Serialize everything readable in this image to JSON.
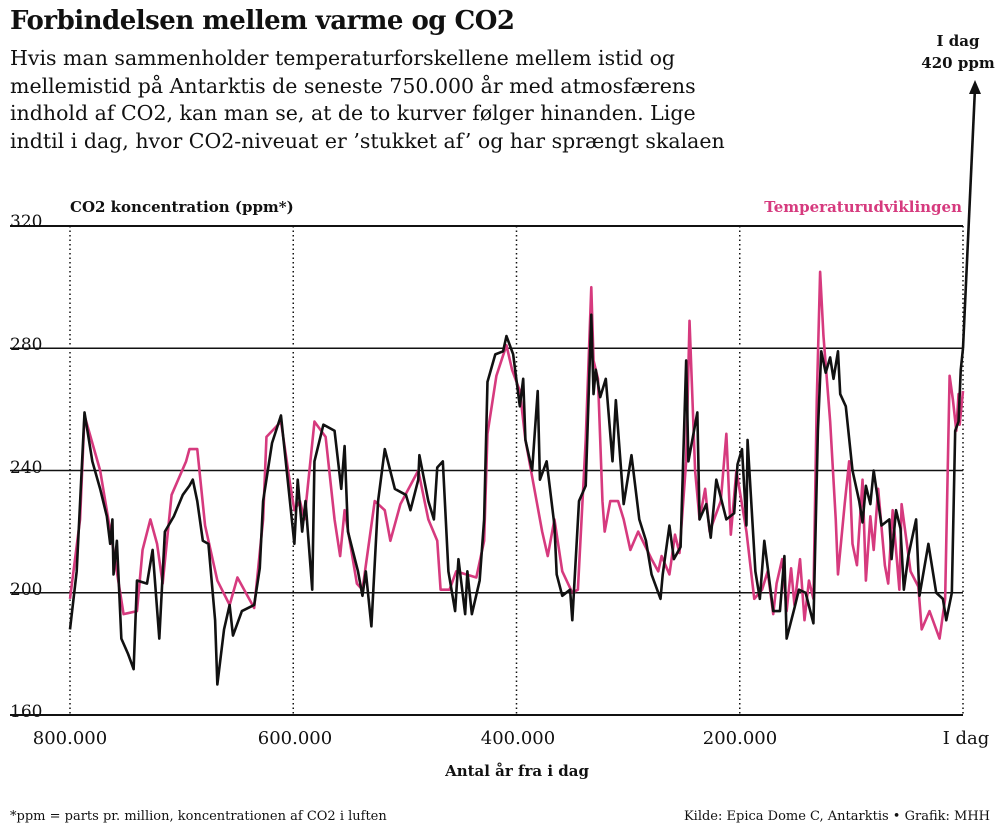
{
  "header": {
    "title": "Forbindelsen mellem varme og CO2",
    "subtitle_lines": [
      "Hvis man sammenholder temperaturforskellene mellem istid og",
      "mellemistid på Antarktis de seneste 750.000 år med atmosfærens",
      "indhold af CO2, kan man se, at de to kurver følger hinanden. Lige",
      "indtil i dag, hvor CO2-niveuat er ’stukket af’ og har sprængt skalaen"
    ]
  },
  "footer": {
    "note": "*ppm = parts pr. million, koncentrationen af CO2 i luften",
    "source": "Kilde: Epica Dome C, Antarktis  •  Grafik: MHH"
  },
  "chart_data": {
    "type": "line",
    "ylabel": "CO2 koncentration (ppm*)",
    "xlabel": "Antal år fra i dag",
    "xlim": [
      800000,
      0
    ],
    "ylim": [
      160,
      320
    ],
    "yticks": [
      "160",
      "200",
      "240",
      "280",
      "320"
    ],
    "xticks": [
      {
        "value": 800000,
        "label": "800.000"
      },
      {
        "value": 600000,
        "label": "600.000"
      },
      {
        "value": 400000,
        "label": "400.000"
      },
      {
        "value": 200000,
        "label": "200.000"
      },
      {
        "value": 0,
        "label": "I dag"
      }
    ],
    "grid": "horizontal solid, vertical dotted",
    "annotation": {
      "line1": "I dag",
      "line2": "420 ppm",
      "value": 420
    },
    "colors": {
      "co2": "#111111",
      "temperature": "#d63a7e"
    },
    "series": [
      {
        "key": "co2",
        "x_kyr_ago": [
          800,
          794,
          787,
          780,
          773,
          767,
          764,
          762,
          761,
          758,
          754,
          748,
          743,
          740,
          731,
          726,
          720,
          715,
          707,
          699,
          693,
          690,
          686,
          681,
          676,
          670,
          668,
          662,
          657,
          654,
          646,
          635,
          630,
          627,
          619,
          611,
          605,
          599,
          596,
          592,
          589,
          583,
          581,
          573,
          563,
          557,
          554,
          551,
          542,
          538,
          535,
          530,
          524,
          518,
          509,
          499,
          495,
          488,
          487,
          479,
          474,
          471,
          466,
          461,
          455,
          452,
          446,
          444,
          440,
          433,
          429,
          426,
          419,
          412,
          409,
          403,
          397,
          394,
          392,
          386,
          381,
          379,
          373,
          366,
          364,
          359,
          352,
          350,
          344,
          338,
          333,
          331,
          329,
          325,
          320,
          314,
          311,
          304,
          297,
          290,
          284,
          279,
          274,
          271,
          269,
          263,
          259,
          253,
          248,
          246,
          238,
          236,
          230,
          226,
          221,
          212,
          205,
          202,
          198,
          194,
          193,
          186,
          182,
          178,
          170,
          164,
          160,
          158,
          151,
          147,
          141,
          134,
          130,
          127,
          123,
          119,
          116,
          112,
          110,
          105,
          99,
          93,
          90,
          87,
          83,
          80,
          73,
          66,
          64,
          60,
          56,
          53,
          49,
          42,
          39,
          31,
          24,
          18,
          15,
          10,
          7,
          4,
          2,
          0
        ],
        "ppm": [
          188,
          207,
          259,
          243,
          234,
          225,
          216,
          224,
          206,
          217,
          185,
          180,
          175,
          204,
          203,
          214,
          185,
          220,
          225,
          232,
          235,
          237,
          230,
          217,
          216,
          191,
          170,
          188,
          196,
          186,
          194,
          196,
          208,
          230,
          249,
          258,
          237,
          216,
          237,
          220,
          230,
          201,
          243,
          255,
          253,
          234,
          248,
          220,
          207,
          199,
          207,
          189,
          230,
          247,
          234,
          232,
          227,
          237,
          245,
          230,
          224,
          241,
          243,
          207,
          194,
          211,
          193,
          207,
          193,
          204,
          224,
          269,
          278,
          279,
          284,
          278,
          261,
          270,
          250,
          240,
          266,
          237,
          243,
          222,
          206,
          199,
          201,
          191,
          230,
          235,
          291,
          265,
          273,
          264,
          270,
          243,
          263,
          229,
          245,
          224,
          217,
          206,
          201,
          198,
          206,
          222,
          211,
          215,
          276,
          243,
          259,
          224,
          229,
          218,
          237,
          224,
          226,
          242,
          247,
          222,
          250,
          207,
          198,
          217,
          194,
          194,
          212,
          185,
          195,
          201,
          200,
          190,
          253,
          279,
          272,
          277,
          270,
          279,
          265,
          261,
          240,
          230,
          223,
          235,
          229,
          240,
          222,
          224,
          211,
          227,
          221,
          201,
          212,
          224,
          199,
          216,
          200,
          198,
          191,
          200,
          253,
          256,
          273,
          280
        ]
      },
      {
        "key": "temperature",
        "name": "Temperaturudviklingen",
        "x_kyr_ago": [
          800,
          791,
          787,
          773,
          762,
          752,
          740,
          735,
          728,
          722,
          717,
          709,
          696,
          693,
          686,
          679,
          668,
          657,
          650,
          635,
          627,
          624,
          611,
          603,
          599,
          594,
          590,
          581,
          571,
          563,
          558,
          554,
          543,
          538,
          527,
          518,
          513,
          504,
          488,
          479,
          471,
          468,
          460,
          454,
          436,
          429,
          426,
          418,
          409,
          404,
          397,
          392,
          382,
          377,
          372,
          366,
          359,
          350,
          345,
          338,
          333,
          331,
          327,
          323,
          321,
          316,
          309,
          304,
          298,
          291,
          279,
          273,
          270,
          263,
          258,
          254,
          248,
          245,
          240,
          236,
          231,
          227,
          217,
          212,
          208,
          203,
          194,
          187,
          180,
          175,
          170,
          167,
          162,
          158,
          154,
          151,
          146,
          142,
          138,
          134,
          131,
          128,
          125,
          119,
          114,
          112,
          106,
          102,
          99,
          95,
          90,
          87,
          83,
          80,
          76,
          70,
          67,
          63,
          57,
          55,
          47,
          40,
          37,
          30,
          21,
          16,
          12,
          9,
          6,
          4,
          3,
          0
        ],
        "ppm_equiv": [
          198,
          224,
          258,
          240,
          216,
          193,
          194,
          214,
          224,
          216,
          203,
          232,
          243,
          247,
          247,
          222,
          204,
          196,
          205,
          195,
          224,
          251,
          256,
          236,
          227,
          230,
          224,
          256,
          251,
          224,
          212,
          227,
          203,
          201,
          230,
          227,
          217,
          229,
          240,
          224,
          217,
          201,
          201,
          207,
          205,
          217,
          252,
          271,
          281,
          273,
          266,
          250,
          230,
          220,
          212,
          224,
          207,
          200,
          201,
          250,
          300,
          276,
          270,
          230,
          220,
          230,
          230,
          224,
          214,
          220,
          211,
          207,
          212,
          206,
          219,
          213,
          243,
          289,
          240,
          224,
          234,
          220,
          230,
          252,
          219,
          240,
          220,
          198,
          201,
          207,
          193,
          203,
          211,
          194,
          208,
          196,
          211,
          191,
          204,
          198,
          263,
          305,
          284,
          256,
          224,
          206,
          229,
          243,
          216,
          209,
          237,
          204,
          225,
          214,
          234,
          209,
          203,
          227,
          201,
          229,
          207,
          202,
          188,
          194,
          185,
          198,
          271,
          263,
          253,
          265,
          255,
          266
        ]
      }
    ]
  }
}
